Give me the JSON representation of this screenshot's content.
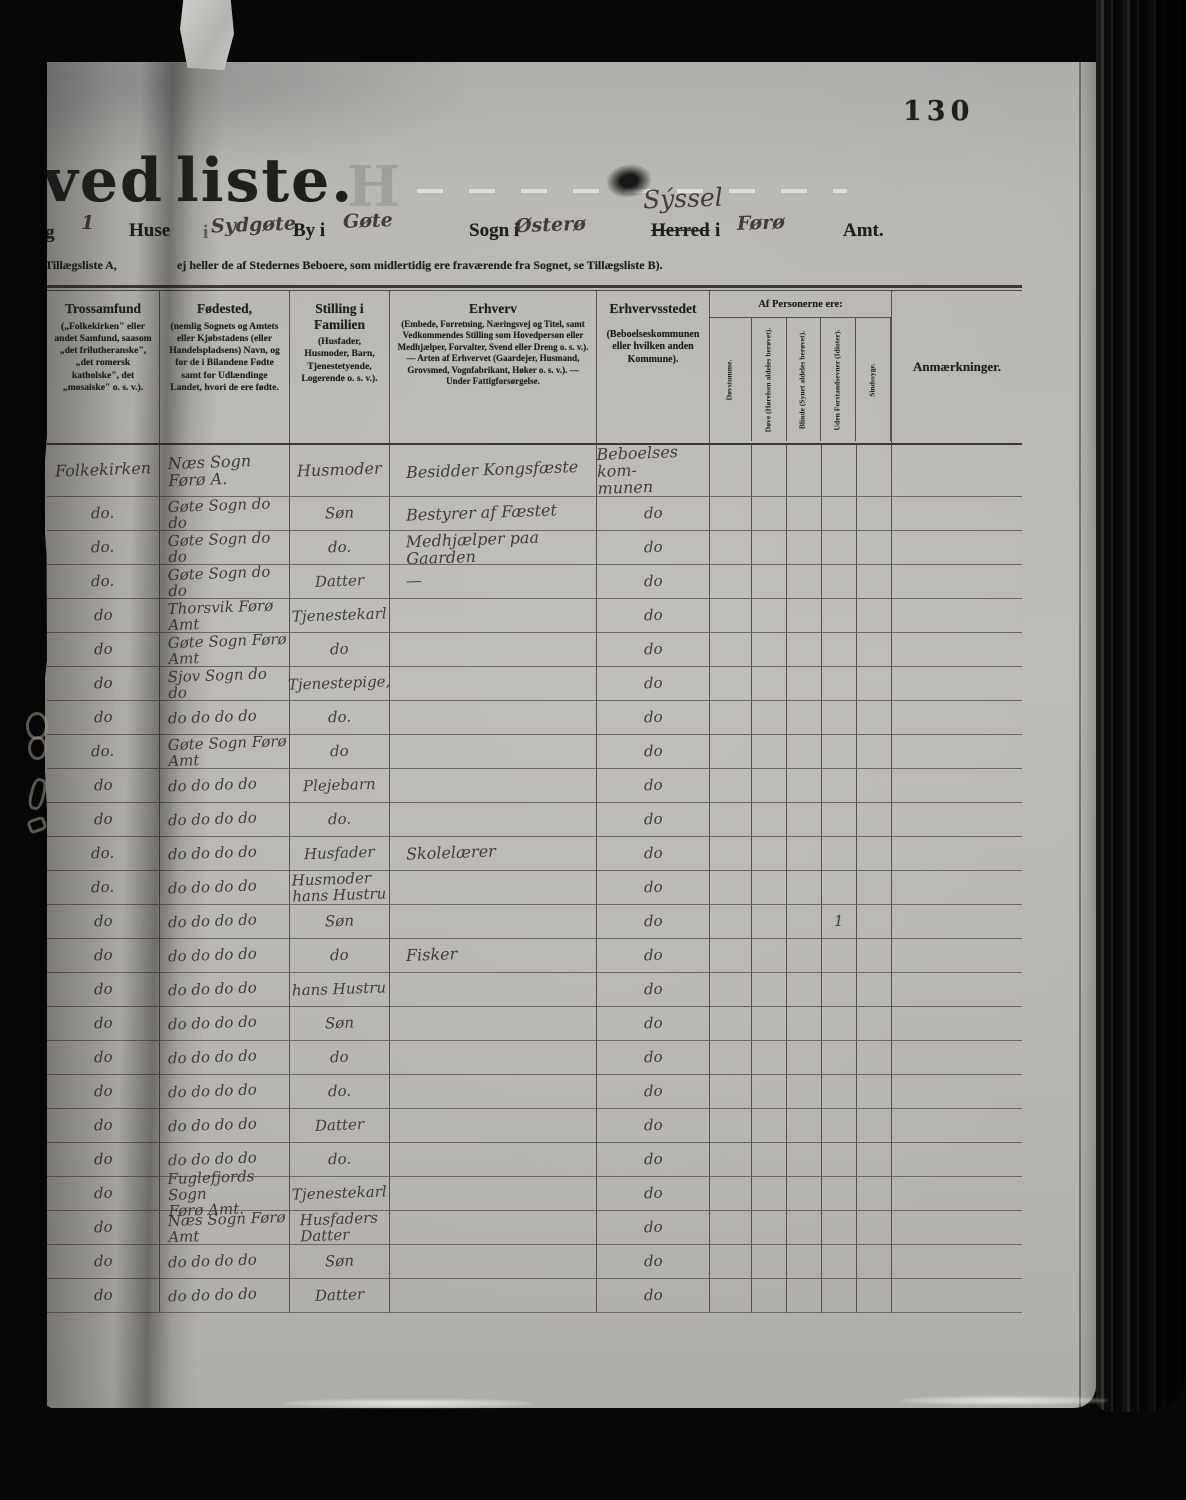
{
  "page": {
    "number": "130"
  },
  "title": {
    "part1": "ved",
    "part2": "liste.",
    "ghost_letter": "H"
  },
  "form_line": {
    "prefix": "g",
    "house_no": "1",
    "huse_label": "Huse",
    "i_label": "i",
    "place_value": "Sydgøte",
    "by_label": "By i",
    "by_value": "Gøte",
    "sogn_label": "Sogn i",
    "sogn_value": "Østerø",
    "herred_label": "Herred",
    "herred_i": "i",
    "herred_correction": "Sýssel",
    "herred_value": "Førø",
    "amt_label": "Amt."
  },
  "note_line": {
    "left_fragment": "Tillægsliste A,",
    "text": "ej heller de af Stedernes Beboere, som midlertidig ere fraværende fra Sognet, se Tillægsliste B)."
  },
  "table": {
    "columns": {
      "trossamfund": {
        "title": "Trossamfund",
        "subtitle": "(„Folkekirken\" eller andet Samfund, saasom „det frilutheranske\", „det romersk katholske\", det „mosaiske\" o. s. v.)."
      },
      "fodested": {
        "title": "Fødested,",
        "subtitle": "(nemlig Sognets og Amtets eller Kjøbstadens (eller Handelspladsens) Navn, og for de i Bilandene Fødte samt for Udlændinge Landet, hvori de ere fødte."
      },
      "stilling": {
        "title": "Stilling i Familien",
        "subtitle": "(Husfader, Husmoder, Barn, Tjenestetyende, Logerende o. s. v.)."
      },
      "erhverv": {
        "title": "Erhverv",
        "subtitle": "(Embede, Forretning, Næringsvej og Titel, samt Vedkommendes Stilling som Hovedperson eller Medhjælper, Forvalter, Svend eller Dreng o. s. v.). — Arten af Erhvervet (Gaardejer, Husmand, Grovsmed, Vognfabrikant, Høker o. s. v.). — Under Fattigforsørgelse."
      },
      "erhvervsstedet": {
        "title": "Erhvervsstedet",
        "subtitle": "(Beboelseskommunen eller hvilken anden Kommune)."
      },
      "anmaerkninger": {
        "title": "Anmærkninger."
      }
    },
    "group_header": "Af Personerne ere:",
    "status_columns": [
      "Døvstumme.",
      "Døve (Hørelsen aldeles berøvet).",
      "Blinde (Synet aldeles berøvet).",
      "Uden Forstandsevner (Idioter).",
      "Sindssyge."
    ],
    "rows": [
      {
        "trossamfund": "Folkekirken",
        "fodested": "Næs Sogn Førø A.",
        "stilling": "Husmoder",
        "erhverv": "Besidder Kongsfæste",
        "erhvervssted": "Beboelses kom-\nmunen",
        "idiot": ""
      },
      {
        "trossamfund": "do.",
        "fodested": "Gøte Sogn do do",
        "stilling": "Søn",
        "erhverv": "Bestyrer af Fæstet",
        "erhvervssted": "do",
        "idiot": ""
      },
      {
        "trossamfund": "do.",
        "fodested": "Gøte Sogn do do",
        "stilling": "do.",
        "erhverv": "Medhjælper paa Gaarden",
        "erhvervssted": "do",
        "idiot": ""
      },
      {
        "trossamfund": "do.",
        "fodested": "Gøte Sogn do do",
        "stilling": "Datter",
        "erhverv": "—",
        "erhvervssted": "do",
        "idiot": ""
      },
      {
        "trossamfund": "do",
        "fodested": "Thorsvik Førø Amt",
        "stilling": "Tjenestekarl",
        "erhverv": "",
        "erhvervssted": "do",
        "idiot": ""
      },
      {
        "trossamfund": "do",
        "fodested": "Gøte Sogn Førø Amt",
        "stilling": "do",
        "erhverv": "",
        "erhvervssted": "do",
        "idiot": ""
      },
      {
        "trossamfund": "do",
        "fodested": "Sjov Sogn do do",
        "stilling": "Tjenestepige,",
        "erhverv": "",
        "erhvervssted": "do",
        "idiot": ""
      },
      {
        "trossamfund": "do",
        "fodested": "do do do do",
        "stilling": "do.",
        "erhverv": "",
        "erhvervssted": "do",
        "idiot": ""
      },
      {
        "trossamfund": "do.",
        "fodested": "Gøte Sogn Førø Amt",
        "stilling": "do",
        "erhverv": "",
        "erhvervssted": "do",
        "idiot": ""
      },
      {
        "trossamfund": "do",
        "fodested": "do do do do",
        "stilling": "Plejebarn",
        "erhverv": "",
        "erhvervssted": "do",
        "idiot": ""
      },
      {
        "trossamfund": "do",
        "fodested": "do do do do",
        "stilling": "do.",
        "erhverv": "",
        "erhvervssted": "do",
        "idiot": ""
      },
      {
        "trossamfund": "do.",
        "fodested": "do do do do",
        "stilling": "Husfader",
        "erhverv": "Skolelærer",
        "erhvervssted": "do",
        "idiot": ""
      },
      {
        "trossamfund": "do.",
        "fodested": "do do do do",
        "stilling": "Husmoder\nhans Hustru",
        "erhverv": "",
        "erhvervssted": "do",
        "idiot": ""
      },
      {
        "trossamfund": "do",
        "fodested": "do do do do",
        "stilling": "Søn",
        "erhverv": "",
        "erhvervssted": "do",
        "idiot": "1"
      },
      {
        "trossamfund": "do",
        "fodested": "do do do do",
        "stilling": "do",
        "erhverv": "Fisker",
        "erhvervssted": "do",
        "idiot": ""
      },
      {
        "trossamfund": "do",
        "fodested": "do do do do",
        "stilling": "hans Hustru",
        "erhverv": "",
        "erhvervssted": "do",
        "idiot": ""
      },
      {
        "trossamfund": "do",
        "fodested": "do do do do",
        "stilling": "Søn",
        "erhverv": "",
        "erhvervssted": "do",
        "idiot": ""
      },
      {
        "trossamfund": "do",
        "fodested": "do do do do",
        "stilling": "do",
        "erhverv": "",
        "erhvervssted": "do",
        "idiot": ""
      },
      {
        "trossamfund": "do",
        "fodested": "do do do do",
        "stilling": "do.",
        "erhverv": "",
        "erhvervssted": "do",
        "idiot": ""
      },
      {
        "trossamfund": "do",
        "fodested": "do do do do",
        "stilling": "Datter",
        "erhverv": "",
        "erhvervssted": "do",
        "idiot": ""
      },
      {
        "trossamfund": "do",
        "fodested": "do do do do",
        "stilling": "do.",
        "erhverv": "",
        "erhvervssted": "do",
        "idiot": ""
      },
      {
        "trossamfund": "do",
        "fodested": "Fuglefjords Sogn\nFørø Amt.",
        "stilling": "Tjenestekarl",
        "erhverv": "",
        "erhvervssted": "do",
        "idiot": ""
      },
      {
        "trossamfund": "do",
        "fodested": "Næs Sogn Førø Amt",
        "stilling": "Husfaders\nDatter",
        "erhverv": "",
        "erhvervssted": "do",
        "idiot": ""
      },
      {
        "trossamfund": "do",
        "fodested": "do do do do",
        "stilling": "Søn",
        "erhverv": "",
        "erhvervssted": "do",
        "idiot": ""
      },
      {
        "trossamfund": "do",
        "fodested": "do do do do",
        "stilling": "Datter",
        "erhverv": "",
        "erhvervssted": "do",
        "idiot": ""
      }
    ]
  }
}
